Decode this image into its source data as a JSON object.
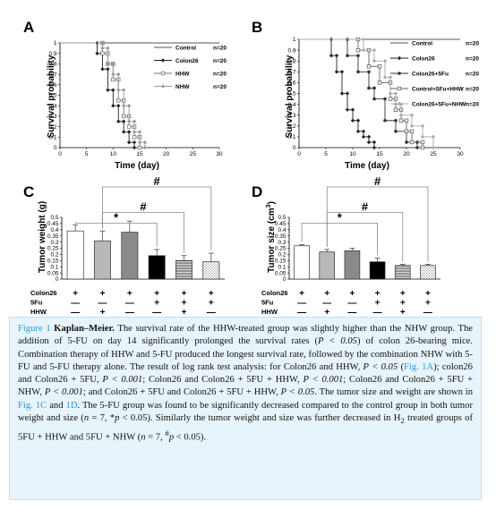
{
  "figure": {
    "panels": [
      "A",
      "B",
      "C",
      "D"
    ]
  },
  "chart_data": [
    {
      "panel": "A",
      "type": "line",
      "step": true,
      "xlabel": "Time (day)",
      "ylabel": "Survival probability",
      "xlim": [
        0,
        30
      ],
      "ylim": [
        0,
        1
      ],
      "xticks": [
        "0",
        "5",
        "10",
        "15",
        "20",
        "25",
        "30"
      ],
      "yticks": [
        "0",
        "0.1",
        "0.2",
        "0.3",
        "0.4",
        "0.5",
        "0.6",
        "0.7",
        "0.8",
        "0.9",
        "1"
      ],
      "legend_position": "right",
      "series": [
        {
          "name": "Control",
          "n_label": "n=20",
          "color": "#555555",
          "marker": "none",
          "x": [
            0,
            30
          ],
          "y": [
            1,
            1
          ]
        },
        {
          "name": "Colon26",
          "n_label": "n=20",
          "color": "#222222",
          "marker": "diamond",
          "x": [
            0,
            7,
            8,
            9,
            10,
            11,
            12,
            13,
            14
          ],
          "y": [
            1,
            0.9,
            0.75,
            0.55,
            0.4,
            0.25,
            0.15,
            0.05,
            0
          ]
        },
        {
          "name": "HHW",
          "n_label": "n=20",
          "color": "#777777",
          "marker": "square",
          "x": [
            0,
            8,
            9,
            10,
            11,
            12,
            13,
            14,
            15
          ],
          "y": [
            1,
            0.9,
            0.8,
            0.65,
            0.45,
            0.3,
            0.2,
            0.1,
            0
          ]
        },
        {
          "name": "NHW",
          "n_label": "n=20",
          "color": "#999999",
          "marker": "diamond",
          "x": [
            0,
            8,
            9,
            10,
            11,
            12,
            13,
            14,
            15,
            16
          ],
          "y": [
            1,
            0.95,
            0.8,
            0.7,
            0.55,
            0.4,
            0.25,
            0.15,
            0.05,
            0
          ]
        }
      ]
    },
    {
      "panel": "B",
      "type": "line",
      "step": true,
      "xlabel": "Time (day)",
      "ylabel": "Survival probability",
      "xlim": [
        0,
        30
      ],
      "ylim": [
        0,
        1
      ],
      "xticks": [
        "0",
        "5",
        "10",
        "15",
        "20",
        "25",
        "30"
      ],
      "yticks": [
        "0",
        "0.1",
        "0.2",
        "0.3",
        "0.4",
        "0.5",
        "0.6",
        "0.7",
        "0.8",
        "0.9",
        "1"
      ],
      "legend_position": "right",
      "series": [
        {
          "name": "Control",
          "n_label": "n=20",
          "color": "#555555",
          "marker": "none",
          "x": [
            0,
            30
          ],
          "y": [
            1,
            1
          ]
        },
        {
          "name": "Colon26",
          "n_label": "n=20",
          "color": "#222222",
          "marker": "diamond",
          "x": [
            0,
            6,
            7,
            8,
            9,
            10,
            11,
            12,
            13,
            14
          ],
          "y": [
            1,
            0.85,
            0.7,
            0.5,
            0.35,
            0.25,
            0.15,
            0.1,
            0.05,
            0
          ]
        },
        {
          "name": "Colon26+5Fu",
          "n_label": "n=20",
          "color": "#333333",
          "marker": "circle",
          "x": [
            0,
            9,
            11,
            13,
            14,
            16,
            18,
            20,
            22
          ],
          "y": [
            1,
            0.85,
            0.7,
            0.55,
            0.45,
            0.25,
            0.15,
            0.05,
            0
          ]
        },
        {
          "name": "Control+5Fu+HHW",
          "n_label": "n=20",
          "color": "#666666",
          "marker": "square",
          "x": [
            0,
            11,
            13,
            15,
            17,
            18,
            19,
            20,
            21,
            23
          ],
          "y": [
            1,
            0.9,
            0.75,
            0.6,
            0.45,
            0.35,
            0.25,
            0.15,
            0.05,
            0
          ]
        },
        {
          "name": "Colon26+5Fu+NHW",
          "n_label": "n=20",
          "color": "#aaaaaa",
          "marker": "diamond",
          "x": [
            0,
            12,
            14,
            16,
            17,
            18,
            19,
            21,
            23,
            25
          ],
          "y": [
            1,
            0.9,
            0.8,
            0.65,
            0.5,
            0.4,
            0.3,
            0.2,
            0.1,
            0
          ]
        }
      ]
    },
    {
      "panel": "C",
      "type": "bar",
      "ylabel": "Tumor weight (g)",
      "ylim": [
        0,
        0.5
      ],
      "yticks": [
        "0",
        "0.05",
        "0.1",
        "0.15",
        "0.2",
        "0.25",
        "0.3",
        "0.35",
        "0.4",
        "0.45",
        "0.5"
      ],
      "values": [
        0.39,
        0.31,
        0.38,
        0.19,
        0.15,
        0.14
      ],
      "errors": [
        0.05,
        0.08,
        0.09,
        0.05,
        0.04,
        0.07
      ],
      "bar_fills": [
        "white",
        "gray",
        "darkgray",
        "black",
        "hatch",
        "dots"
      ],
      "significance": [
        {
          "symbol": "*",
          "from": 0,
          "to": 3
        },
        {
          "symbol": "#",
          "from": 1,
          "to": 4
        },
        {
          "symbol": "#",
          "from": 1,
          "to": 5
        }
      ],
      "rows": [
        {
          "label": "Colon26",
          "signs": [
            "+",
            "+",
            "+",
            "+",
            "+",
            "+"
          ]
        },
        {
          "label": "5Fu",
          "signs": [
            "—",
            "—",
            "—",
            "+",
            "+",
            "+"
          ]
        },
        {
          "label": "HHW",
          "signs": [
            "—",
            "+",
            "—",
            "—",
            "+",
            "—"
          ]
        },
        {
          "label": "NHW",
          "signs": [
            "—",
            "—",
            "+",
            "—",
            "—",
            "+"
          ]
        }
      ]
    },
    {
      "panel": "D",
      "type": "bar",
      "ylabel_main": "Tumor size (cm",
      "ylabel_sup": "3",
      "ylabel_end": ")",
      "ylim": [
        0,
        0.5
      ],
      "yticks": [
        "0",
        "0.05",
        "0.1",
        "0.15",
        "0.2",
        "0.25",
        "0.3",
        "0.35",
        "0.4",
        "0.45",
        "0.5"
      ],
      "values": [
        0.27,
        0.22,
        0.23,
        0.14,
        0.11,
        0.11
      ],
      "errors": [
        0.01,
        0.02,
        0.02,
        0.03,
        0.01,
        0.01
      ],
      "bar_fills": [
        "white",
        "gray",
        "darkgray",
        "black",
        "hatch",
        "dots"
      ],
      "significance": [
        {
          "symbol": "*",
          "from": 0,
          "to": 3
        },
        {
          "symbol": "#",
          "from": 1,
          "to": 4
        },
        {
          "symbol": "#",
          "from": 1,
          "to": 5
        }
      ],
      "rows": [
        {
          "label": "Colon26",
          "signs": [
            "+",
            "+",
            "+",
            "+",
            "+",
            "+"
          ]
        },
        {
          "label": "5Fu",
          "signs": [
            "—",
            "—",
            "—",
            "+",
            "+",
            "+"
          ]
        },
        {
          "label": "HHW",
          "signs": [
            "—",
            "+",
            "—",
            "—",
            "+",
            "—"
          ]
        },
        {
          "label": "NHW",
          "signs": [
            "—",
            "—",
            "+",
            "—",
            "—",
            "+"
          ]
        }
      ]
    }
  ],
  "caption": {
    "figure_label": "Figure 1",
    "title": "Kaplan–Meier.",
    "text_1": " The survival rate of the HHW-treated group was slightly higher than the NHW group. The addition of 5-FU on day 14 significantly prolonged the survival rates (",
    "p_1": "P < 0.05",
    "text_2": ") of colon 26-bearing mice. Combination therapy of HHW and 5-FU produced the longest survival rate, followed by the combination NHW with 5-FU and 5-FU therapy alone. The result of log rank test analysis: for Colon26 and HHW, ",
    "p_2": "P < 0.05",
    "ref_1a": "Fig. 1A",
    "text_3": "; colon26 and Colon26 + 5FU, ",
    "p_3": "P < 0.001",
    "text_4": "; Colon26 and Colon26 + 5FU + HHW, ",
    "p_4": "P < 0.001",
    "text_5": "; Colon26 and Colon26 + 5FU + NHW, ",
    "p_5": "P < 0.001",
    "text_6": "; and Colon26 + 5FU and Colon26 + 5FU + HHW, ",
    "p_6": "P < 0.05",
    "text_7": ". The tumor size and weight are shown in ",
    "ref_1c": "Fig. 1C",
    "text_8": " and ",
    "ref_1d": "1D",
    "text_9": ". The 5-FU group was found to be significantly decreased compared to the control group in both tumor weight and size (",
    "n_1": "n",
    "text_10": " = 7, *",
    "p_7": "p",
    "text_11": " < 0.05). Similarly the tumor weight and size was further decreased in H",
    "sub_2": "2",
    "text_12": " treated groups of 5FU + HHW and 5FU + NHW (",
    "n_2": "n",
    "text_13": " = 7, ",
    "sup_hash": "#",
    "p_8": "p",
    "text_14": " < 0.05)."
  }
}
